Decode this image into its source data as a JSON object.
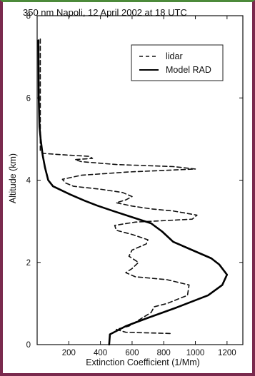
{
  "chart_data": {
    "type": "line",
    "title": "350 nm   Napoli, 12 April 2002 at 18 UTC",
    "xlabel": "Extinction Coefficient (1/Mm)",
    "ylabel": "Altitude (km)",
    "xlim": [
      0,
      1300
    ],
    "ylim": [
      0,
      8
    ],
    "x_ticks": [
      "200",
      "400",
      "600",
      "800",
      "1000",
      "1200"
    ],
    "x_tick_values": [
      200,
      400,
      600,
      800,
      1000,
      1200
    ],
    "y_ticks": [
      "0",
      "2",
      "4",
      "6",
      "8"
    ],
    "y_tick_values": [
      0,
      2,
      4,
      6,
      8
    ],
    "grid": false,
    "legend_position": "top-right",
    "series": [
      {
        "name": "lidar",
        "style": "dashed",
        "color": "#111111",
        "points": [
          [
            840,
            0.27
          ],
          [
            560,
            0.3
          ],
          [
            500,
            0.37
          ],
          [
            580,
            0.45
          ],
          [
            720,
            0.78
          ],
          [
            740,
            0.92
          ],
          [
            820,
            1.0
          ],
          [
            950,
            1.2
          ],
          [
            960,
            1.45
          ],
          [
            820,
            1.58
          ],
          [
            620,
            1.65
          ],
          [
            560,
            1.75
          ],
          [
            600,
            1.85
          ],
          [
            640,
            2.0
          ],
          [
            580,
            2.15
          ],
          [
            600,
            2.3
          ],
          [
            690,
            2.45
          ],
          [
            700,
            2.55
          ],
          [
            600,
            2.68
          ],
          [
            500,
            2.78
          ],
          [
            490,
            2.9
          ],
          [
            620,
            2.98
          ],
          [
            980,
            3.05
          ],
          [
            1010,
            3.15
          ],
          [
            860,
            3.25
          ],
          [
            720,
            3.3
          ],
          [
            600,
            3.37
          ],
          [
            500,
            3.45
          ],
          [
            560,
            3.52
          ],
          [
            600,
            3.6
          ],
          [
            540,
            3.7
          ],
          [
            400,
            3.78
          ],
          [
            230,
            3.85
          ],
          [
            180,
            3.93
          ],
          [
            160,
            4.02
          ],
          [
            280,
            4.12
          ],
          [
            580,
            4.2
          ],
          [
            1000,
            4.27
          ],
          [
            860,
            4.33
          ],
          [
            500,
            4.38
          ],
          [
            280,
            4.45
          ],
          [
            240,
            4.5
          ],
          [
            350,
            4.53
          ],
          [
            330,
            4.58
          ],
          [
            150,
            4.62
          ],
          [
            40,
            4.65
          ],
          [
            20,
            4.7
          ],
          [
            20,
            7.5
          ]
        ]
      },
      {
        "name": "Model RAD",
        "style": "solid",
        "color": "#000000",
        "points": [
          [
            455,
            0.0
          ],
          [
            460,
            0.25
          ],
          [
            560,
            0.45
          ],
          [
            700,
            0.65
          ],
          [
            880,
            0.9
          ],
          [
            1080,
            1.2
          ],
          [
            1170,
            1.45
          ],
          [
            1200,
            1.7
          ],
          [
            1150,
            1.95
          ],
          [
            1100,
            2.1
          ],
          [
            980,
            2.3
          ],
          [
            860,
            2.5
          ],
          [
            790,
            2.75
          ],
          [
            720,
            2.95
          ],
          [
            600,
            3.1
          ],
          [
            480,
            3.25
          ],
          [
            380,
            3.38
          ],
          [
            300,
            3.5
          ],
          [
            210,
            3.65
          ],
          [
            100,
            3.85
          ],
          [
            70,
            4.0
          ],
          [
            50,
            4.3
          ],
          [
            35,
            4.6
          ],
          [
            22,
            5.0
          ],
          [
            15,
            5.3
          ],
          [
            10,
            6.0
          ],
          [
            8,
            7.4
          ]
        ]
      }
    ]
  }
}
